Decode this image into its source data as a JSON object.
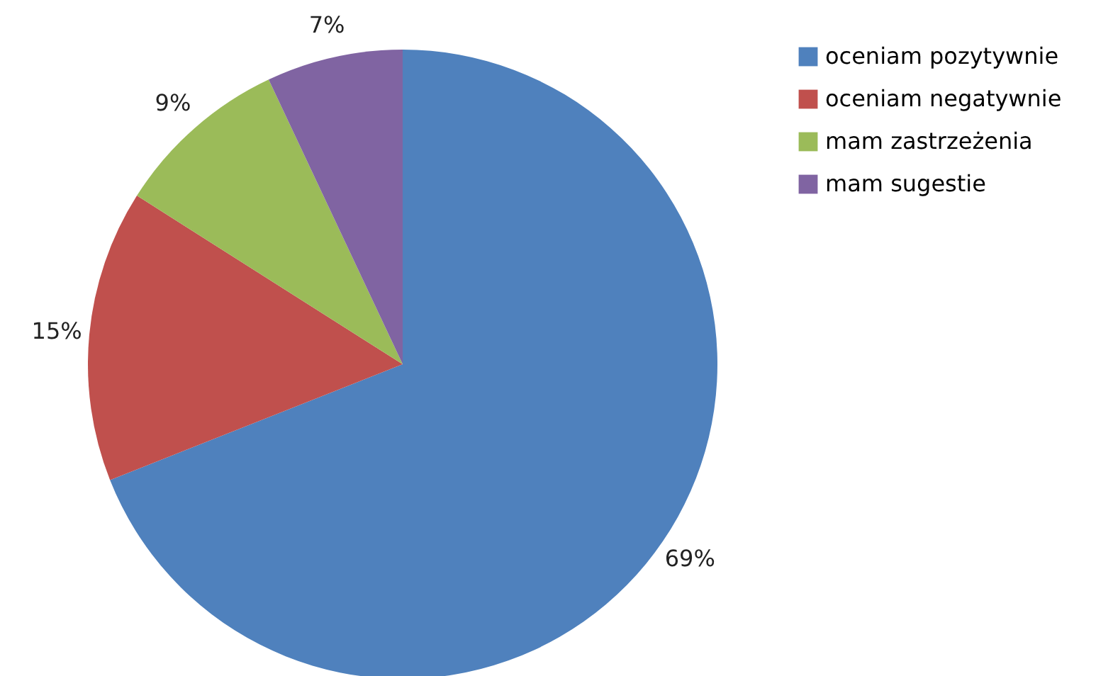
{
  "chart_data": {
    "type": "pie",
    "categories": [
      "oceniam pozytywnie",
      "oceniam negatywnie",
      "mam zastrzeżenia",
      "mam sugestie"
    ],
    "values": [
      69,
      15,
      9,
      7
    ],
    "value_labels": [
      "69%",
      "15%",
      "9%",
      "7%"
    ],
    "colors": [
      "#4f81bd",
      "#c0504d",
      "#9bbb59",
      "#8064a2"
    ],
    "legend": "top right"
  }
}
